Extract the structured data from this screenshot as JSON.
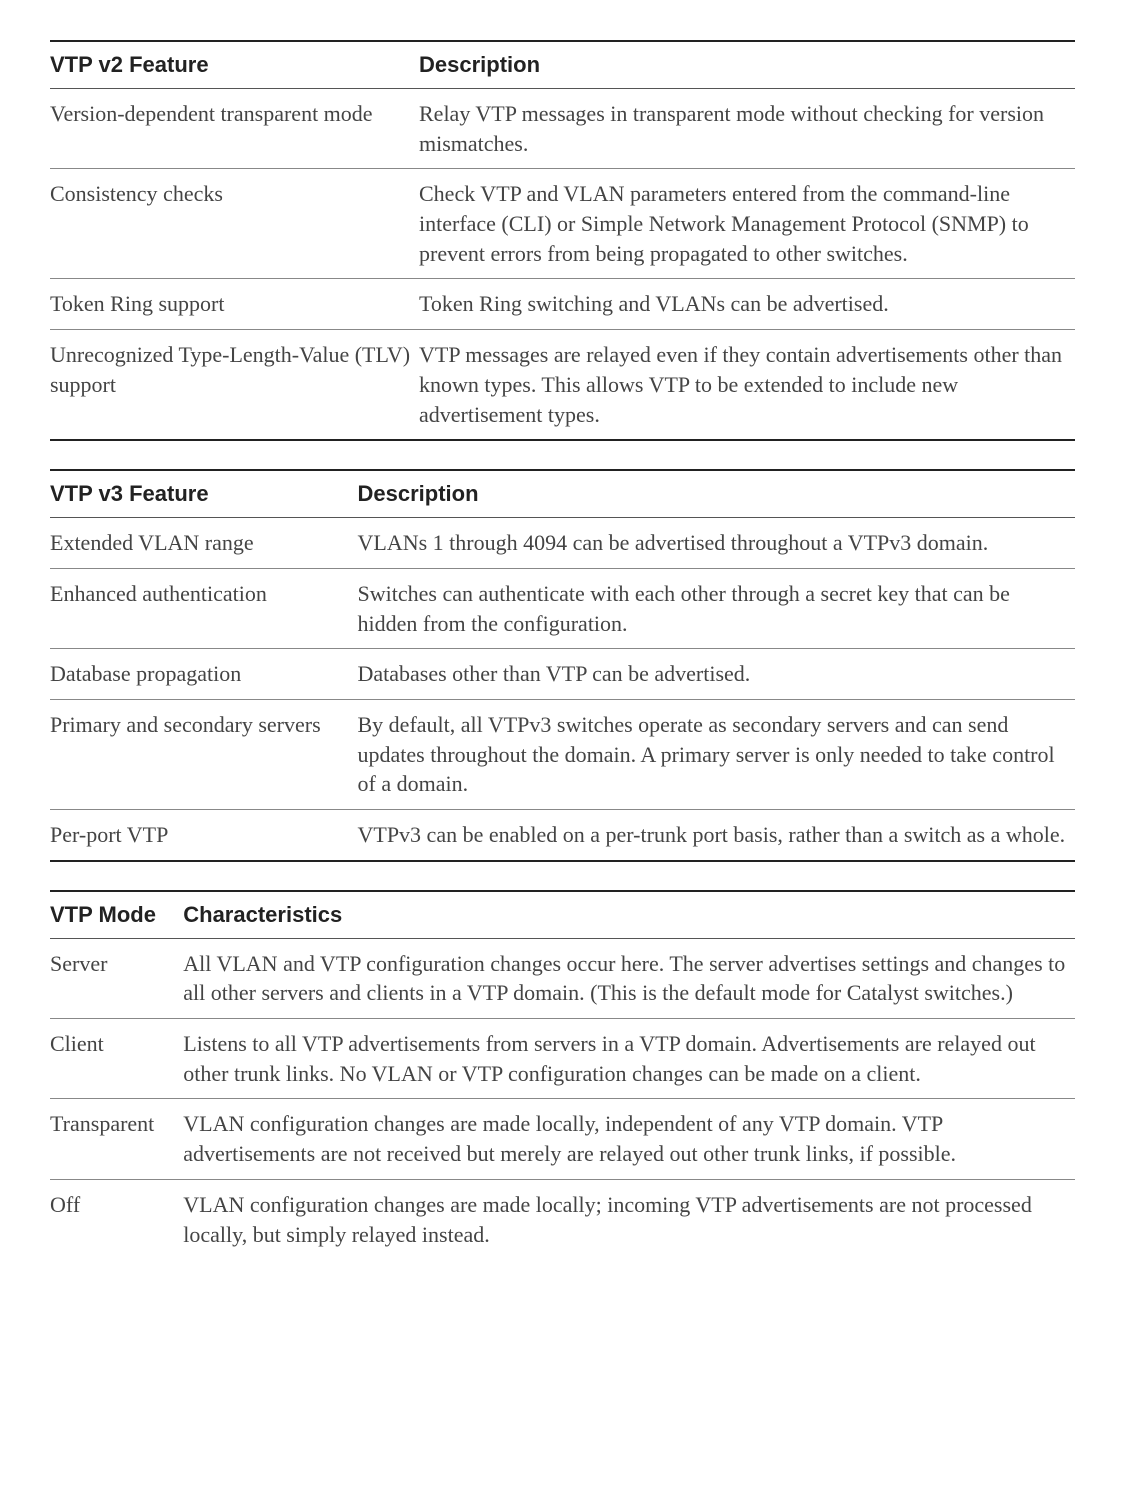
{
  "colors": {
    "background": "#ffffff",
    "text": "#333333",
    "header_text": "#222222",
    "rule_heavy": "#222222",
    "rule_light": "#888888"
  },
  "typography": {
    "header_family": "Arial, Helvetica, sans-serif",
    "header_weight": "bold",
    "header_size_pt": 16,
    "body_family": "Georgia, Times New Roman, serif",
    "body_size_pt": 16,
    "line_height": 1.35
  },
  "table_v2": {
    "type": "table",
    "col_widths_pct": [
      36,
      64
    ],
    "headers": {
      "feature": "VTP v2 Feature",
      "description": "Description"
    },
    "rows": [
      {
        "feature": "Version-dependent transparent mode",
        "description": "Relay VTP messages in transparent mode without checking for version mismatches."
      },
      {
        "feature": "Consistency checks",
        "description": "Check VTP and VLAN parameters entered from the command-line interface (CLI) or Simple Network Management Protocol (SNMP) to prevent errors from being propagated to other switches."
      },
      {
        "feature": "Token Ring support",
        "description": "Token Ring switching and VLANs can be advertised."
      },
      {
        "feature": "Unrecognized Type-Length-Value (TLV) support",
        "description": "VTP messages are relayed even if they contain advertisements other than known types. This allows VTP to be extended to include new advertisement types."
      }
    ]
  },
  "table_v3": {
    "type": "table",
    "col_widths_pct": [
      30,
      70
    ],
    "headers": {
      "feature": "VTP v3 Feature",
      "description": "Description"
    },
    "rows": [
      {
        "feature": "Extended VLAN range",
        "description": "VLANs 1 through 4094 can be advertised throughout a VTPv3 domain."
      },
      {
        "feature": "Enhanced authentication",
        "description": "Switches can authenticate with each other through a secret key that can be hidden from the configuration."
      },
      {
        "feature": "Database propagation",
        "description": "Databases other than VTP can be advertised."
      },
      {
        "feature": "Primary and secondary servers",
        "description": "By default, all VTPv3 switches operate as secondary servers and can send updates throughout the domain. A primary server is only needed to take control of a domain."
      },
      {
        "feature": "Per-port VTP",
        "description": "VTPv3 can be enabled on a per-trunk port basis, rather than a switch as a whole."
      }
    ]
  },
  "table_mode": {
    "type": "table",
    "col_widths_pct": [
      13,
      87
    ],
    "headers": {
      "feature": "VTP Mode",
      "description": "Characteristics"
    },
    "rows": [
      {
        "feature": "Server",
        "description": "All VLAN and VTP configuration changes occur here. The server advertises settings and changes to all other servers and clients in a VTP domain. (This is the default mode for Catalyst switches.)"
      },
      {
        "feature": "Client",
        "description": "Listens to all VTP advertisements from servers in a VTP domain. Advertisements are relayed out other trunk links. No VLAN or VTP configuration changes can be made on a client."
      },
      {
        "feature": "Transparent",
        "description": "VLAN configuration changes are made locally, independent of any VTP domain. VTP advertisements are not received but merely are relayed out other trunk links, if possible."
      },
      {
        "feature": "Off",
        "description": "VLAN configuration changes are made locally; incoming VTP advertisements are not processed locally, but simply relayed instead."
      }
    ]
  }
}
